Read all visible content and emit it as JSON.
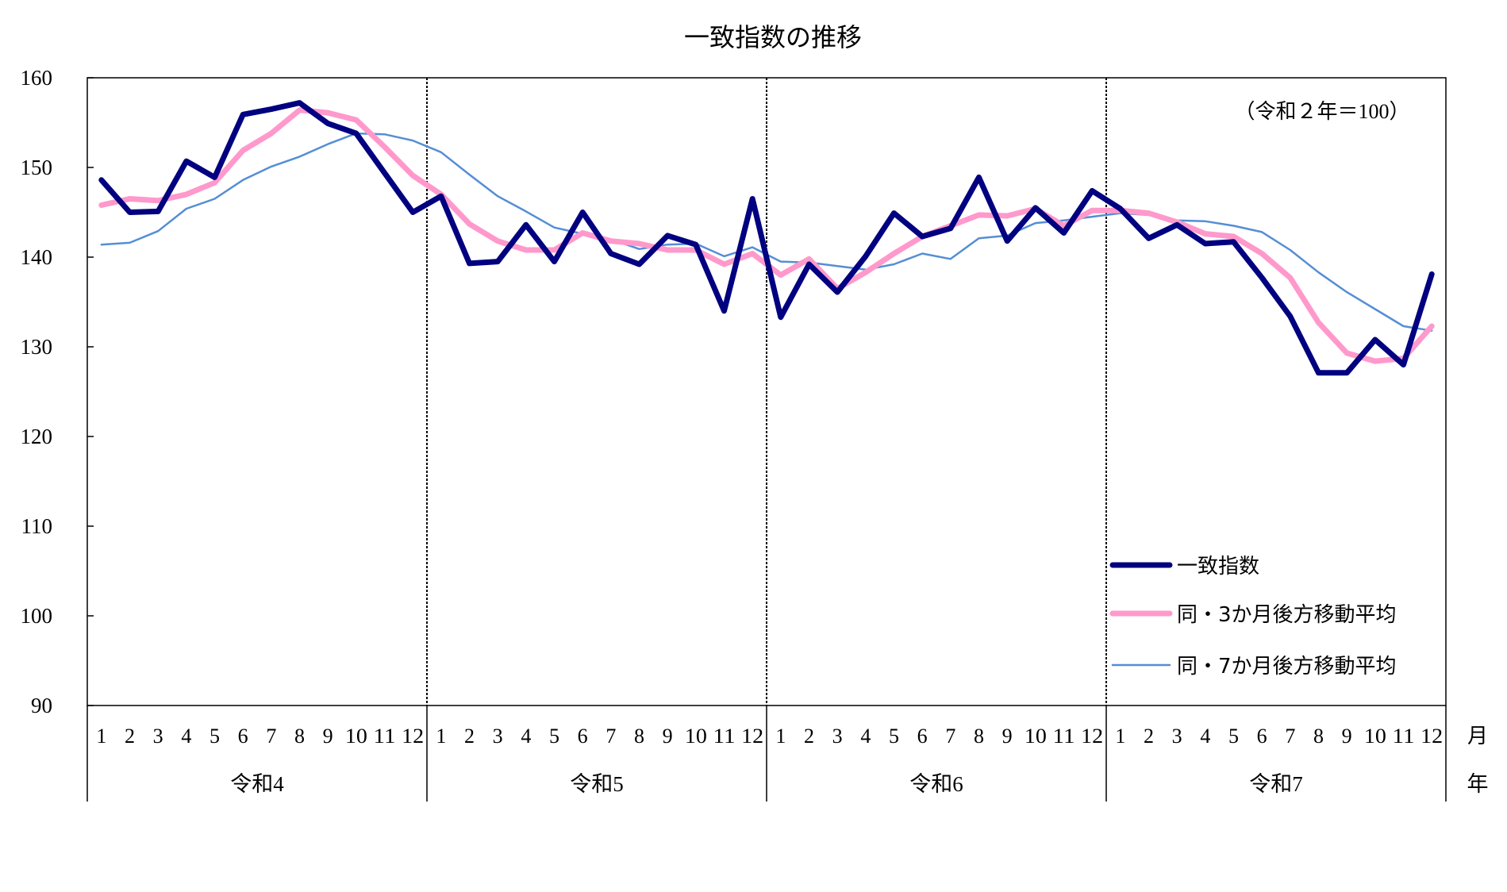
{
  "chart_data": {
    "type": "line",
    "title": "一致指数の推移",
    "note": "（令和２年＝100）",
    "xlabel_month": "月",
    "xlabel_year": "年",
    "ylabel": "",
    "ylim": [
      90,
      160
    ],
    "yticks": [
      90,
      100,
      110,
      120,
      130,
      140,
      150,
      160
    ],
    "grid": false,
    "legend_position": "lower right",
    "years": [
      "令和4",
      "令和5",
      "令和6",
      "令和7"
    ],
    "months": [
      "1",
      "2",
      "3",
      "4",
      "5",
      "6",
      "7",
      "8",
      "9",
      "10",
      "11",
      "12"
    ],
    "x": [
      "令和4-1",
      "令和4-2",
      "令和4-3",
      "令和4-4",
      "令和4-5",
      "令和4-6",
      "令和4-7",
      "令和4-8",
      "令和4-9",
      "令和4-10",
      "令和4-11",
      "令和4-12",
      "令和5-1",
      "令和5-2",
      "令和5-3",
      "令和5-4",
      "令和5-5",
      "令和5-6",
      "令和5-7",
      "令和5-8",
      "令和5-9",
      "令和5-10",
      "令和5-11",
      "令和5-12",
      "令和6-1",
      "令和6-2",
      "令和6-3",
      "令和6-4",
      "令和6-5",
      "令和6-6",
      "令和6-7",
      "令和6-8",
      "令和6-9",
      "令和6-10",
      "令和6-11",
      "令和6-12",
      "令和7-1",
      "令和7-2",
      "令和7-3",
      "令和7-4",
      "令和7-5",
      "令和7-6",
      "令和7-7",
      "令和7-8",
      "令和7-9",
      "令和7-10",
      "令和7-11",
      "令和7-12"
    ],
    "series": [
      {
        "name": "一致指数",
        "color": "#000080",
        "width": 7,
        "values": [
          148.6,
          145.0,
          145.1,
          150.7,
          148.9,
          155.9,
          156.5,
          157.2,
          154.9,
          153.8,
          149.4,
          145.0,
          146.8,
          139.3,
          139.5,
          143.6,
          139.5,
          145.0,
          140.4,
          139.2,
          142.4,
          141.4,
          134.0,
          146.5,
          133.3,
          139.2,
          136.1,
          140.1,
          144.9,
          142.3,
          143.2,
          148.9,
          141.8,
          145.5,
          142.7,
          147.4,
          145.4,
          142.1,
          143.6,
          141.5,
          141.7,
          137.7,
          133.4,
          127.1,
          127.1,
          130.8,
          128.0,
          138.1
        ]
      },
      {
        "name": "同・3か月後方移動平均",
        "color": "#FF99CC",
        "width": 7,
        "values": [
          145.8,
          146.5,
          146.3,
          147.0,
          148.3,
          151.9,
          153.8,
          156.4,
          156.1,
          155.3,
          152.3,
          149.1,
          147.0,
          143.7,
          141.8,
          140.8,
          140.8,
          142.7,
          141.8,
          141.5,
          140.8,
          140.8,
          139.2,
          140.4,
          138.0,
          139.8,
          136.5,
          138.3,
          140.4,
          142.3,
          143.5,
          144.7,
          144.6,
          145.4,
          143.5,
          145.2,
          145.2,
          144.9,
          143.9,
          142.6,
          142.3,
          140.4,
          137.7,
          132.7,
          129.3,
          128.4,
          128.7,
          132.3
        ]
      },
      {
        "name": "同・7か月後方移動平均",
        "color": "#558ED5",
        "width": 2.5,
        "values": [
          141.4,
          141.6,
          142.9,
          145.4,
          146.5,
          148.6,
          150.1,
          151.2,
          152.6,
          153.8,
          153.7,
          153.0,
          151.7,
          149.2,
          146.8,
          145.1,
          143.3,
          142.6,
          142.0,
          140.9,
          141.4,
          141.5,
          140.1,
          141.1,
          139.5,
          139.4,
          139.0,
          138.6,
          139.2,
          140.4,
          139.8,
          142.1,
          142.4,
          143.8,
          144.1,
          144.5,
          144.9,
          144.7,
          144.1,
          144.0,
          143.5,
          142.8,
          140.8,
          138.3,
          136.1,
          134.2,
          132.3,
          131.8
        ]
      }
    ]
  },
  "legend": {
    "items": [
      {
        "label": "一致指数",
        "color": "#000080",
        "width": 7
      },
      {
        "label": "同・3か月後方移動平均",
        "color": "#FF99CC",
        "width": 7
      },
      {
        "label": "同・7か月後方移動平均",
        "color": "#558ED5",
        "width": 2.5
      }
    ]
  }
}
